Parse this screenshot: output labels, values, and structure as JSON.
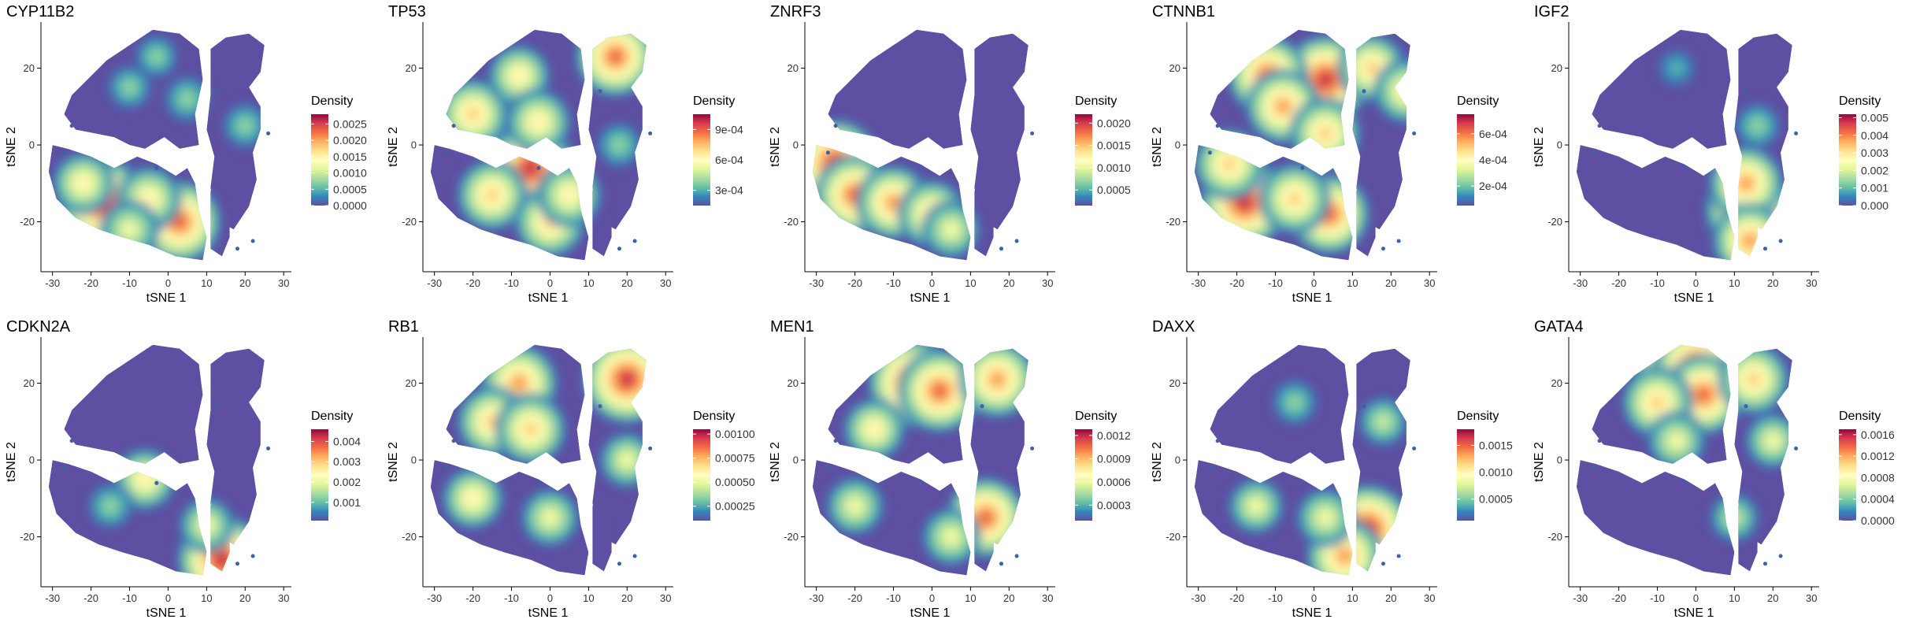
{
  "figure": {
    "x_label": "tSNE 1",
    "y_label": "tSNE 2",
    "legend_title": "Density",
    "x_ticks": [
      -30,
      -20,
      -10,
      0,
      10,
      20,
      30
    ],
    "y_ticks": [
      -20,
      0,
      20
    ],
    "palette": [
      "#5E4FA2",
      "#3288BD",
      "#66C2A5",
      "#ABDDA4",
      "#E6F598",
      "#FFFFBF",
      "#FEE08B",
      "#FDAE61",
      "#F46D43",
      "#D53E4F",
      "#9E0142"
    ],
    "background_color": "#ffffff",
    "axis_color": "#000000"
  },
  "chart_data": [
    {
      "type": "heatmap",
      "title": "CYP11B2",
      "xlabel": "tSNE 1",
      "ylabel": "tSNE 2",
      "xlim": [
        -33,
        32
      ],
      "ylim": [
        -33,
        32
      ],
      "legend": {
        "title": "Density",
        "ticks": [
          "0.0025",
          "0.0020",
          "0.0015",
          "0.0010",
          "0.0005",
          "0.0000"
        ],
        "tick_values": [
          0.0025,
          0.002,
          0.0015,
          0.001,
          0.0005,
          0.0
        ],
        "min": 0.0,
        "max": 0.0028
      },
      "hotspots": [
        {
          "x": -17,
          "y": -15,
          "intensity": 1.0
        },
        {
          "x": 3,
          "y": -20,
          "intensity": 0.9
        },
        {
          "x": -22,
          "y": -10,
          "intensity": 0.55
        },
        {
          "x": -5,
          "y": -14,
          "intensity": 0.6
        },
        {
          "x": -10,
          "y": -22,
          "intensity": 0.5
        },
        {
          "x": -10,
          "y": 15,
          "intensity": 0.28
        },
        {
          "x": 5,
          "y": 12,
          "intensity": 0.32
        },
        {
          "x": 20,
          "y": 5,
          "intensity": 0.3
        },
        {
          "x": -3,
          "y": 23,
          "intensity": 0.25
        }
      ]
    },
    {
      "type": "heatmap",
      "title": "TP53",
      "xlabel": "tSNE 1",
      "ylabel": "tSNE 2",
      "xlim": [
        -33,
        32
      ],
      "ylim": [
        -33,
        32
      ],
      "legend": {
        "title": "Density",
        "ticks": [
          "9e-04",
          "6e-04",
          "3e-04"
        ],
        "tick_values": [
          0.0009,
          0.0006,
          0.0003
        ],
        "min": 0.00015,
        "max": 0.00105
      },
      "hotspots": [
        {
          "x": -5,
          "y": -6,
          "intensity": 1.0
        },
        {
          "x": 17,
          "y": 23,
          "intensity": 0.85
        },
        {
          "x": -20,
          "y": 8,
          "intensity": 0.7
        },
        {
          "x": -15,
          "y": -13,
          "intensity": 0.7
        },
        {
          "x": 0,
          "y": -20,
          "intensity": 0.7
        },
        {
          "x": 5,
          "y": -13,
          "intensity": 0.6
        },
        {
          "x": -8,
          "y": 18,
          "intensity": 0.55
        },
        {
          "x": -3,
          "y": 6,
          "intensity": 0.6
        },
        {
          "x": 18,
          "y": 0,
          "intensity": 0.3
        }
      ]
    },
    {
      "type": "heatmap",
      "title": "ZNRF3",
      "xlabel": "tSNE 1",
      "ylabel": "tSNE 2",
      "xlim": [
        -33,
        32
      ],
      "ylim": [
        -33,
        32
      ],
      "legend": {
        "title": "Density",
        "ticks": [
          "0.0020",
          "0.0015",
          "0.0010",
          "0.0005"
        ],
        "tick_values": [
          0.002,
          0.0015,
          0.001,
          0.0005
        ],
        "min": 0.00015,
        "max": 0.0022
      },
      "hotspots": [
        {
          "x": -25,
          "y": -5,
          "intensity": 1.0
        },
        {
          "x": -20,
          "y": -13,
          "intensity": 0.85
        },
        {
          "x": -10,
          "y": -15,
          "intensity": 0.75
        },
        {
          "x": 0,
          "y": -18,
          "intensity": 0.65
        },
        {
          "x": 5,
          "y": -22,
          "intensity": 0.5
        }
      ]
    },
    {
      "type": "heatmap",
      "title": "CTNNB1",
      "xlabel": "tSNE 1",
      "ylabel": "tSNE 2",
      "xlim": [
        -33,
        32
      ],
      "ylim": [
        -33,
        32
      ],
      "legend": {
        "title": "Density",
        "ticks": [
          "6e-04",
          "4e-04",
          "2e-04"
        ],
        "tick_values": [
          0.0006,
          0.0004,
          0.0002
        ],
        "min": 5e-05,
        "max": 0.00075
      },
      "hotspots": [
        {
          "x": -18,
          "y": -15,
          "intensity": 1.0
        },
        {
          "x": 3,
          "y": 17,
          "intensity": 1.0
        },
        {
          "x": -12,
          "y": 18,
          "intensity": 0.85
        },
        {
          "x": 4,
          "y": -18,
          "intensity": 0.85
        },
        {
          "x": -8,
          "y": 10,
          "intensity": 0.75
        },
        {
          "x": -22,
          "y": -5,
          "intensity": 0.7
        },
        {
          "x": 3,
          "y": 3,
          "intensity": 0.7
        },
        {
          "x": -5,
          "y": -14,
          "intensity": 0.7
        },
        {
          "x": 15,
          "y": 20,
          "intensity": 0.65
        },
        {
          "x": 24,
          "y": 14,
          "intensity": 0.6
        }
      ]
    },
    {
      "type": "heatmap",
      "title": "IGF2",
      "xlabel": "tSNE 1",
      "ylabel": "tSNE 2",
      "xlim": [
        -33,
        32
      ],
      "ylim": [
        -33,
        32
      ],
      "legend": {
        "title": "Density",
        "ticks": [
          "0.005",
          "0.004",
          "0.003",
          "0.002",
          "0.001",
          "0.000"
        ],
        "tick_values": [
          0.005,
          0.004,
          0.003,
          0.002,
          0.001,
          0.0
        ],
        "min": 0.0,
        "max": 0.0052
      },
      "hotspots": [
        {
          "x": 14,
          "y": -17,
          "intensity": 1.0
        },
        {
          "x": 13,
          "y": -10,
          "intensity": 0.75
        },
        {
          "x": 14,
          "y": -25,
          "intensity": 0.75
        },
        {
          "x": 16,
          "y": 5,
          "intensity": 0.3
        },
        {
          "x": -5,
          "y": 20,
          "intensity": 0.22
        }
      ]
    },
    {
      "type": "heatmap",
      "title": "CDKN2A",
      "xlabel": "tSNE 1",
      "ylabel": "tSNE 2",
      "xlim": [
        -33,
        32
      ],
      "ylim": [
        -33,
        32
      ],
      "legend": {
        "title": "Density",
        "ticks": [
          "0.004",
          "0.003",
          "0.002",
          "0.001"
        ],
        "tick_values": [
          0.004,
          0.003,
          0.002,
          0.001
        ],
        "min": 0.0001,
        "max": 0.0046
      },
      "hotspots": [
        {
          "x": 14,
          "y": -26,
          "intensity": 1.0
        },
        {
          "x": -6,
          "y": -5,
          "intensity": 0.55
        },
        {
          "x": 10,
          "y": -17,
          "intensity": 0.45
        },
        {
          "x": -15,
          "y": -12,
          "intensity": 0.3
        }
      ]
    },
    {
      "type": "heatmap",
      "title": "RB1",
      "xlabel": "tSNE 1",
      "ylabel": "tSNE 2",
      "xlim": [
        -33,
        32
      ],
      "ylim": [
        -33,
        32
      ],
      "legend": {
        "title": "Density",
        "ticks": [
          "0.00100",
          "0.00075",
          "0.00050",
          "0.00025"
        ],
        "tick_values": [
          0.001,
          0.00075,
          0.0005,
          0.00025
        ],
        "min": 0.0001,
        "max": 0.00105
      },
      "hotspots": [
        {
          "x": 20,
          "y": 21,
          "intensity": 1.0
        },
        {
          "x": -8,
          "y": 20,
          "intensity": 0.8
        },
        {
          "x": -15,
          "y": 10,
          "intensity": 0.7
        },
        {
          "x": -5,
          "y": 8,
          "intensity": 0.7
        },
        {
          "x": -20,
          "y": -10,
          "intensity": 0.55
        },
        {
          "x": 0,
          "y": -15,
          "intensity": 0.5
        },
        {
          "x": 20,
          "y": 0,
          "intensity": 0.45
        }
      ]
    },
    {
      "type": "heatmap",
      "title": "MEN1",
      "xlabel": "tSNE 1",
      "ylabel": "tSNE 2",
      "xlim": [
        -33,
        32
      ],
      "ylim": [
        -33,
        32
      ],
      "legend": {
        "title": "Density",
        "ticks": [
          "0.0012",
          "0.0009",
          "0.0006",
          "0.0003"
        ],
        "tick_values": [
          0.0012,
          0.0009,
          0.0006,
          0.0003
        ],
        "min": 0.0001,
        "max": 0.00128
      },
      "hotspots": [
        {
          "x": -5,
          "y": 20,
          "intensity": 1.0
        },
        {
          "x": 2,
          "y": 18,
          "intensity": 0.9
        },
        {
          "x": 17,
          "y": 21,
          "intensity": 0.8
        },
        {
          "x": 14,
          "y": -15,
          "intensity": 0.85
        },
        {
          "x": -15,
          "y": 8,
          "intensity": 0.55
        },
        {
          "x": -20,
          "y": -12,
          "intensity": 0.5
        },
        {
          "x": 5,
          "y": -20,
          "intensity": 0.5
        }
      ]
    },
    {
      "type": "heatmap",
      "title": "DAXX",
      "xlabel": "tSNE 1",
      "ylabel": "tSNE 2",
      "xlim": [
        -33,
        32
      ],
      "ylim": [
        -33,
        32
      ],
      "legend": {
        "title": "Density",
        "ticks": [
          "0.0015",
          "0.0010",
          "0.0005"
        ],
        "tick_values": [
          0.0015,
          0.001,
          0.0005
        ],
        "min": 0.0001,
        "max": 0.0018
      },
      "hotspots": [
        {
          "x": 14,
          "y": -18,
          "intensity": 1.0
        },
        {
          "x": 8,
          "y": -25,
          "intensity": 0.8
        },
        {
          "x": -15,
          "y": -12,
          "intensity": 0.45
        },
        {
          "x": 3,
          "y": -15,
          "intensity": 0.5
        },
        {
          "x": -5,
          "y": 15,
          "intensity": 0.3
        },
        {
          "x": 18,
          "y": 10,
          "intensity": 0.35
        }
      ]
    },
    {
      "type": "heatmap",
      "title": "GATA4",
      "xlabel": "tSNE 1",
      "ylabel": "tSNE 2",
      "xlim": [
        -33,
        32
      ],
      "ylim": [
        -33,
        32
      ],
      "legend": {
        "title": "Density",
        "ticks": [
          "0.0016",
          "0.0012",
          "0.0008",
          "0.0004",
          "0.0000"
        ],
        "tick_values": [
          0.0016,
          0.0012,
          0.0008,
          0.0004,
          0.0
        ],
        "min": 0.0,
        "max": 0.0017
      },
      "hotspots": [
        {
          "x": -5,
          "y": 21,
          "intensity": 1.0
        },
        {
          "x": 0,
          "y": 24,
          "intensity": 0.95
        },
        {
          "x": 2,
          "y": 17,
          "intensity": 0.85
        },
        {
          "x": -10,
          "y": 15,
          "intensity": 0.7
        },
        {
          "x": 15,
          "y": 21,
          "intensity": 0.7
        },
        {
          "x": -5,
          "y": 5,
          "intensity": 0.5
        },
        {
          "x": 20,
          "y": 5,
          "intensity": 0.45
        },
        {
          "x": 10,
          "y": -15,
          "intensity": 0.35
        }
      ]
    }
  ]
}
